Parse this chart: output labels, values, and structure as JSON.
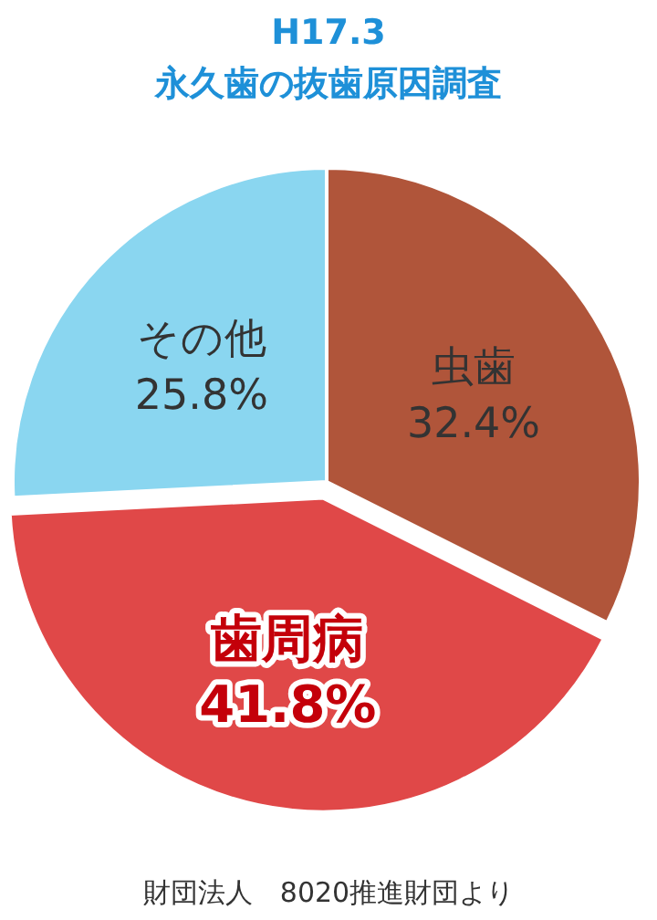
{
  "chart_data": {
    "type": "pie",
    "title": "H17.3",
    "subtitle": "永久歯の抜歯原因調査",
    "categories": [
      "虫歯",
      "歯周病",
      "その他"
    ],
    "values": [
      32.4,
      41.8,
      25.8
    ],
    "value_labels": [
      "32.4%",
      "41.8%",
      "25.8%"
    ],
    "colors": [
      "#b0553a",
      "#e04848",
      "#8ad6f0"
    ],
    "annotations": [
      "財団法人　8020推進財団より"
    ]
  }
}
